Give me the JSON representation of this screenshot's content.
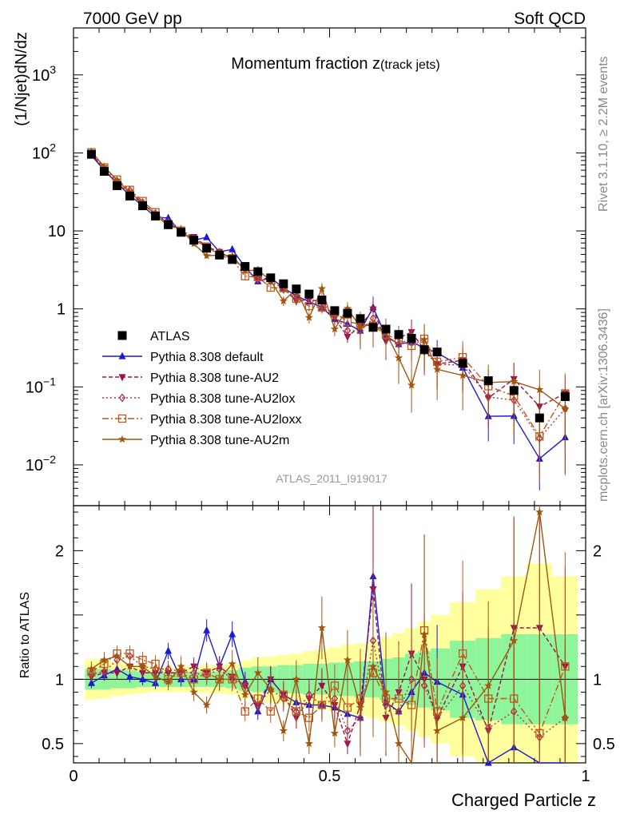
{
  "header": {
    "energy_label": "7000 GeV pp",
    "process_label": "Soft QCD",
    "rivet_label": "Rivet 3.1.10, ≥ 2.2M events",
    "mcplots_label": "mcplots.cern.ch [arXiv:1306.3436]",
    "analysis_label": "ATLAS_2011_I919017"
  },
  "colors": {
    "data": "#000000",
    "default": "#1a1ad6",
    "au2": "#9b1148",
    "au2lox": "#b0304a",
    "au2loxx": "#c0581c",
    "au2m": "#a0560f",
    "band_inner": "#8ff59a",
    "band_outer": "#ffff9e"
  },
  "chart_data": {
    "type": "line",
    "title": "Momentum fraction z",
    "title_sub": "(track jets)",
    "xlabel": "Charged Particle z",
    "ylabel": "(1/Njet)dN/dz",
    "ratio_ylabel": "Ratio to ATLAS",
    "xlim": [
      0,
      1
    ],
    "ylim": [
      0.003,
      4000
    ],
    "yscale": "log",
    "ratio_ylim": [
      0.35,
      2.35
    ],
    "xticks": [
      {
        "v": 0,
        "label": "0"
      },
      {
        "v": 0.5,
        "label": "0.5"
      },
      {
        "v": 1,
        "label": "1"
      }
    ],
    "yticks": [
      {
        "v": 0.01,
        "base": "10",
        "exp": "−2"
      },
      {
        "v": 0.1,
        "base": "10",
        "exp": "−1"
      },
      {
        "v": 1,
        "base": "1",
        "exp": ""
      },
      {
        "v": 10,
        "base": "10",
        "exp": ""
      },
      {
        "v": 100,
        "base": "10",
        "exp": "2"
      },
      {
        "v": 1000,
        "base": "10",
        "exp": "3"
      }
    ],
    "ratio_yticks": [
      {
        "v": 0.5,
        "label": "0.5"
      },
      {
        "v": 1,
        "label": "1"
      },
      {
        "v": 2,
        "label": "2"
      }
    ],
    "legend_position": "bottom-left",
    "x": [
      0.035,
      0.06,
      0.085,
      0.11,
      0.135,
      0.16,
      0.185,
      0.21,
      0.235,
      0.26,
      0.285,
      0.31,
      0.335,
      0.36,
      0.385,
      0.41,
      0.435,
      0.46,
      0.485,
      0.51,
      0.535,
      0.56,
      0.585,
      0.61,
      0.635,
      0.66,
      0.685,
      0.71,
      0.76,
      0.81,
      0.86,
      0.91,
      0.96
    ],
    "data": {
      "name": "ATLAS",
      "values": [
        96,
        58,
        38,
        28,
        21,
        15.5,
        12,
        9.6,
        7.6,
        6.0,
        4.9,
        4.3,
        3.5,
        3.0,
        2.5,
        2.1,
        1.8,
        1.55,
        1.3,
        0.95,
        0.88,
        0.75,
        0.58,
        0.55,
        0.47,
        0.42,
        0.3,
        0.28,
        0.2,
        0.12,
        0.09,
        0.04,
        0.075
      ]
    },
    "band_inner": [
      0.08,
      0.08,
      0.07,
      0.07,
      0.06,
      0.06,
      0.06,
      0.06,
      0.06,
      0.06,
      0.06,
      0.07,
      0.09,
      0.1,
      0.1,
      0.11,
      0.11,
      0.12,
      0.12,
      0.13,
      0.13,
      0.14,
      0.14,
      0.16,
      0.17,
      0.2,
      0.22,
      0.24,
      0.3,
      0.32,
      0.35,
      0.35,
      0.35
    ],
    "band_outer": [
      0.16,
      0.15,
      0.13,
      0.12,
      0.11,
      0.1,
      0.1,
      0.1,
      0.1,
      0.11,
      0.11,
      0.12,
      0.15,
      0.17,
      0.18,
      0.19,
      0.2,
      0.22,
      0.23,
      0.25,
      0.27,
      0.28,
      0.3,
      0.33,
      0.36,
      0.4,
      0.45,
      0.5,
      0.6,
      0.7,
      0.8,
      0.9,
      0.8
    ],
    "series": [
      {
        "name": "Pythia 8.308 default",
        "key": "default",
        "marker": "triangle-up",
        "dash": "",
        "ratio": [
          0.97,
          1.03,
          1.08,
          1.02,
          1.0,
          0.97,
          1.22,
          1.0,
          1.0,
          1.38,
          1.1,
          1.35,
          0.98,
          0.75,
          1.0,
          0.88,
          0.82,
          0.8,
          0.8,
          0.78,
          0.73,
          0.7,
          1.8,
          0.82,
          0.75,
          0.9,
          1.05,
          0.98,
          0.88,
          0.35,
          0.47,
          0.3,
          0.3
        ]
      },
      {
        "name": "Pythia 8.308 tune-AU2",
        "key": "au2",
        "marker": "triangle-down",
        "dash": "5,3",
        "ratio": [
          1.02,
          1.05,
          1.05,
          1.1,
          1.05,
          1.05,
          1.05,
          1.05,
          1.1,
          1.05,
          1.1,
          1.02,
          0.95,
          0.8,
          1.0,
          0.88,
          0.7,
          0.85,
          0.95,
          0.8,
          0.5,
          0.8,
          1.7,
          0.7,
          0.9,
          1.2,
          1.0,
          0.7,
          1.1,
          0.6,
          1.4,
          1.4,
          1.1
        ]
      },
      {
        "name": "Pythia 8.308 tune-AU2lox",
        "key": "au2lox",
        "marker": "diamond",
        "dash": "2,3",
        "ratio": [
          1.04,
          1.06,
          1.15,
          1.18,
          1.1,
          1.08,
          1.08,
          1.06,
          1.05,
          1.03,
          1.08,
          1.0,
          0.95,
          0.8,
          0.92,
          0.85,
          0.75,
          0.88,
          0.8,
          0.85,
          0.6,
          0.7,
          1.3,
          0.8,
          0.75,
          1.0,
          0.95,
          0.7,
          0.95,
          0.62,
          0.75,
          0.55,
          0.7
        ]
      },
      {
        "name": "Pythia 8.308 tune-AU2loxx",
        "key": "au2loxx",
        "marker": "square-open",
        "dash": "8,3,2,3",
        "ratio": [
          1.06,
          1.12,
          1.2,
          1.2,
          1.15,
          1.12,
          1.0,
          1.05,
          1.0,
          1.05,
          1.0,
          1.0,
          0.75,
          0.85,
          0.75,
          0.88,
          0.75,
          0.7,
          0.8,
          0.95,
          0.78,
          0.85,
          1.05,
          0.85,
          0.85,
          0.8,
          1.38,
          0.75,
          1.2,
          0.85,
          0.85,
          0.58,
          1.1
        ]
      },
      {
        "name": "Pythia 8.308 tune-AU2m",
        "key": "au2m",
        "marker": "star",
        "dash": "",
        "ratio": [
          1.08,
          1.15,
          1.18,
          1.1,
          1.1,
          1.02,
          0.98,
          1.1,
          0.9,
          0.8,
          1.0,
          1.12,
          0.88,
          1.05,
          0.92,
          0.6,
          1.0,
          0.5,
          1.4,
          0.58,
          1.15,
          0.78,
          1.1,
          0.9,
          0.5,
          0.25,
          1.35,
          0.6,
          0.7,
          0.95,
          1.3,
          2.3,
          0.7
        ]
      }
    ]
  }
}
